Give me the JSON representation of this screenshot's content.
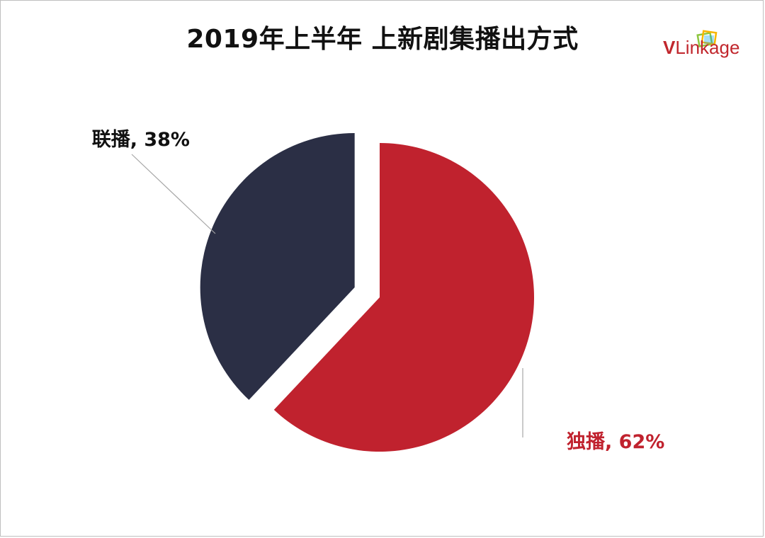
{
  "chart_data": {
    "type": "pie",
    "title": "2019年上半年 上新剧集播出方式",
    "slices": [
      {
        "name": "独播",
        "value": 62,
        "label": "独播, 62%",
        "color": "#c0222e",
        "label_color": "#c0222e",
        "exploded": false
      },
      {
        "name": "联播",
        "value": 38,
        "label": "联播, 38%",
        "color": "#2b2f45",
        "label_color": "#111111",
        "exploded": true
      }
    ],
    "start_angle_deg": 0,
    "direction": "clockwise",
    "legend": "none",
    "leader_line_color": "#a6a6a6"
  },
  "brand": {
    "text_v": "V",
    "text_rest": "Linkage",
    "logo_colors": [
      "#8dc63f",
      "#f7b500",
      "#00a0e9",
      "#c1272d"
    ]
  }
}
